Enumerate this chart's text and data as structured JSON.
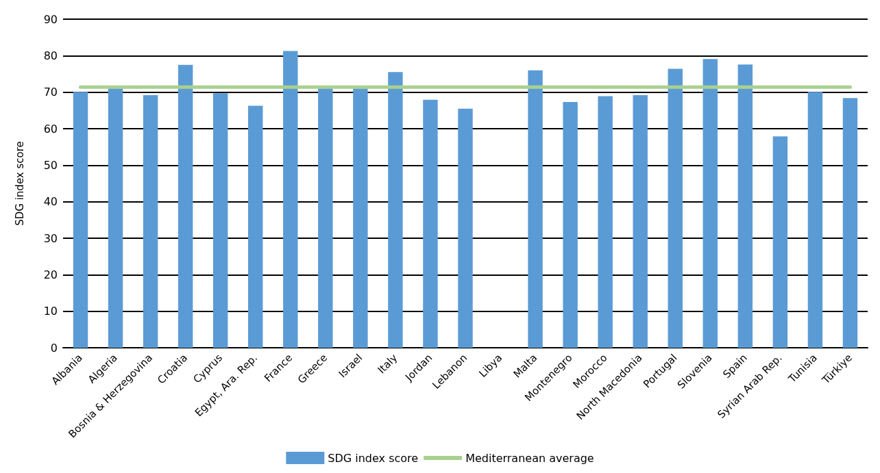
{
  "chart_data": {
    "type": "bar",
    "ylabel": "SDG index score",
    "categories": [
      "Albania",
      "Algeria",
      "Bosnia & Herzegovina",
      "Croatia",
      "Cyprus",
      "Egypt, Ara. Rep.",
      "France",
      "Greece",
      "Israel",
      "Italy",
      "Jordan",
      "Lebanon",
      "Libya",
      "Malta",
      "Montenegro",
      "Morocco",
      "North Macedonia",
      "Portugal",
      "Slovenia",
      "Spain",
      "Syrian Arab Rep.",
      "Tunisia",
      "Türkiye"
    ],
    "series": [
      {
        "name": "SDG index score",
        "color": "#5b9bd5",
        "values": [
          70.1,
          71.0,
          69.2,
          77.5,
          69.7,
          66.3,
          81.3,
          71.0,
          71.0,
          75.5,
          67.9,
          65.5,
          null,
          76.0,
          67.3,
          68.9,
          69.2,
          76.4,
          79.1,
          77.6,
          57.9,
          70.1,
          68.4
        ]
      },
      {
        "name": "Mediterranean average",
        "type": "line",
        "color": "#a9d18e",
        "values": [
          71.4,
          71.4,
          71.4,
          71.4,
          71.4,
          71.4,
          71.4,
          71.4,
          71.4,
          71.4,
          71.4,
          71.4,
          71.4,
          71.4,
          71.4,
          71.4,
          71.4,
          71.4,
          71.4,
          71.4,
          71.4,
          71.4,
          71.4
        ]
      }
    ],
    "ylim": [
      0,
      90
    ],
    "yticks": [
      0,
      10,
      20,
      30,
      40,
      50,
      60,
      70,
      80,
      90
    ],
    "grid": "y",
    "legend": "bottom",
    "marker": "none"
  }
}
